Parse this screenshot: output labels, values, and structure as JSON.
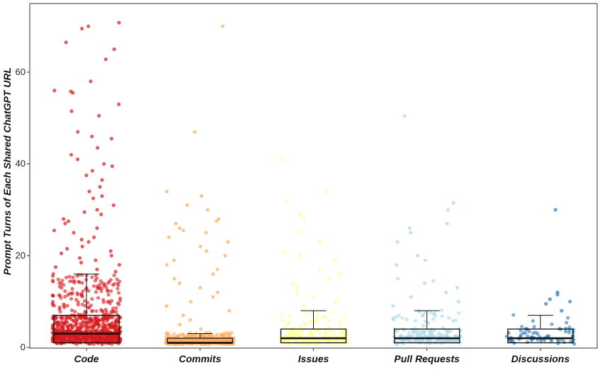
{
  "chart_data": {
    "type": "box",
    "title": "",
    "xlabel": "",
    "ylabel": "Prompt Turns of Each Shared ChatGPT URL",
    "ylim": [
      0,
      72
    ],
    "yticks": [
      0,
      20,
      40,
      60
    ],
    "grid": false,
    "categories": [
      "Code",
      "Commits",
      "Issues",
      "Pull Requests",
      "Discussions"
    ],
    "colors": [
      "#d7191c",
      "#fdae61",
      "#ffff8c",
      "#abd9e9",
      "#2c7bb6"
    ],
    "boxes": [
      {
        "name": "Code",
        "min": 1,
        "q1": 1,
        "median": 3,
        "q3": 7,
        "max": 16
      },
      {
        "name": "Commits",
        "min": 1,
        "q1": 1,
        "median": 1,
        "q3": 2,
        "max": 3
      },
      {
        "name": "Issues",
        "min": 1,
        "q1": 1,
        "median": 2,
        "q3": 4,
        "max": 8
      },
      {
        "name": "Pull Requests",
        "min": 1,
        "q1": 1,
        "median": 2,
        "q3": 4,
        "max": 8
      },
      {
        "name": "Discussions",
        "min": 1,
        "q1": 1,
        "median": 2,
        "q3": 4,
        "max": 7
      }
    ],
    "outliers": {
      "Code": [
        70.8,
        70,
        69.5,
        66.5,
        65,
        62.8,
        58,
        56,
        55.5,
        55.8,
        53,
        51.5,
        50.5,
        47,
        46,
        45.5,
        43.5,
        42,
        41,
        40,
        39.5,
        38.5,
        37.5,
        36.5,
        35,
        34,
        33,
        32.5,
        31,
        30,
        29.5,
        29,
        28,
        27.5,
        27,
        26,
        25.5,
        25,
        24,
        23.5,
        23,
        22,
        21.5,
        21,
        20.5,
        20,
        19.5,
        19,
        18.5,
        18,
        17.5,
        17,
        16.5
      ],
      "Commits": [
        70,
        47,
        34,
        33,
        31,
        30,
        28,
        27.5,
        27,
        26,
        25.5,
        25,
        24,
        23,
        22,
        21,
        20,
        19,
        18,
        17,
        16,
        15,
        14,
        13,
        12,
        11,
        10,
        9,
        8,
        7,
        6,
        5,
        4
      ],
      "Issues": [
        41,
        34,
        32,
        29,
        28,
        25,
        23,
        21,
        20,
        19,
        17,
        16,
        15,
        14,
        13,
        12,
        11,
        10,
        9
      ],
      "Pull Requests": [
        50.5,
        31.5,
        30,
        27,
        26,
        25,
        23,
        20,
        19,
        18,
        15,
        14.5,
        14,
        13,
        12,
        11,
        10,
        9
      ],
      "Discussions": [
        30,
        12,
        11.5,
        10.5,
        10,
        9.5,
        8
      ]
    },
    "n_points_in_box": [
      900,
      600,
      180,
      200,
      70
    ]
  }
}
